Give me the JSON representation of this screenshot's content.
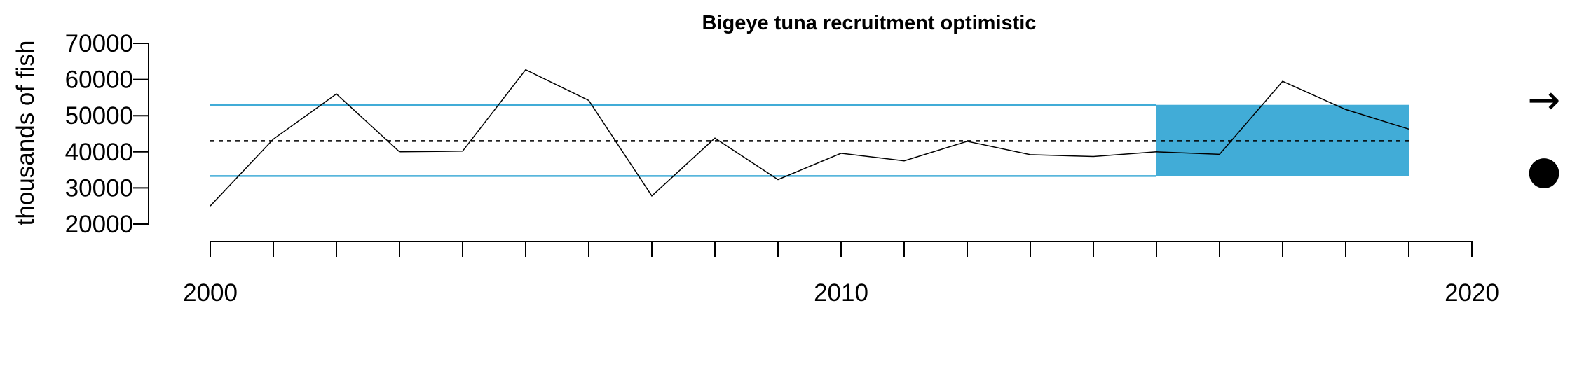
{
  "chart_data": {
    "type": "line",
    "title": "Bigeye tuna recruitment optimistic",
    "xlabel": "",
    "ylabel": "thousands of fish",
    "xlim": [
      1999,
      2021
    ],
    "ylim": [
      20000,
      70000
    ],
    "x_ticks_major": [
      2000,
      2010,
      2020
    ],
    "x_ticks_minor": [
      2000,
      2001,
      2002,
      2003,
      2004,
      2005,
      2006,
      2007,
      2008,
      2009,
      2010,
      2011,
      2012,
      2013,
      2014,
      2015,
      2016,
      2017,
      2018,
      2019,
      2020
    ],
    "y_ticks": [
      20000,
      30000,
      40000,
      50000,
      60000,
      70000
    ],
    "grid": false,
    "series": [
      {
        "x": [
          2000,
          2001,
          2002,
          2003,
          2004,
          2005,
          2006,
          2007,
          2008,
          2009,
          2010,
          2011,
          2012,
          2013,
          2014,
          2015,
          2016,
          2017,
          2018,
          2019
        ],
        "values": [
          25000,
          43500,
          56000,
          40000,
          40200,
          62700,
          54200,
          27800,
          43800,
          32300,
          39600,
          37500,
          42900,
          39200,
          38700,
          40000,
          39300,
          59500,
          51700,
          46300
        ]
      }
    ],
    "reference_lines": {
      "mean": 43000,
      "upper": 53000,
      "lower": 33300
    },
    "highlight_range": {
      "x_start": 2015,
      "x_end": 2019
    },
    "colors": {
      "band": "#41acd7",
      "line": "#000000",
      "mean": "#000000"
    },
    "side_indicators": {
      "trend": "→",
      "status": "●"
    }
  }
}
